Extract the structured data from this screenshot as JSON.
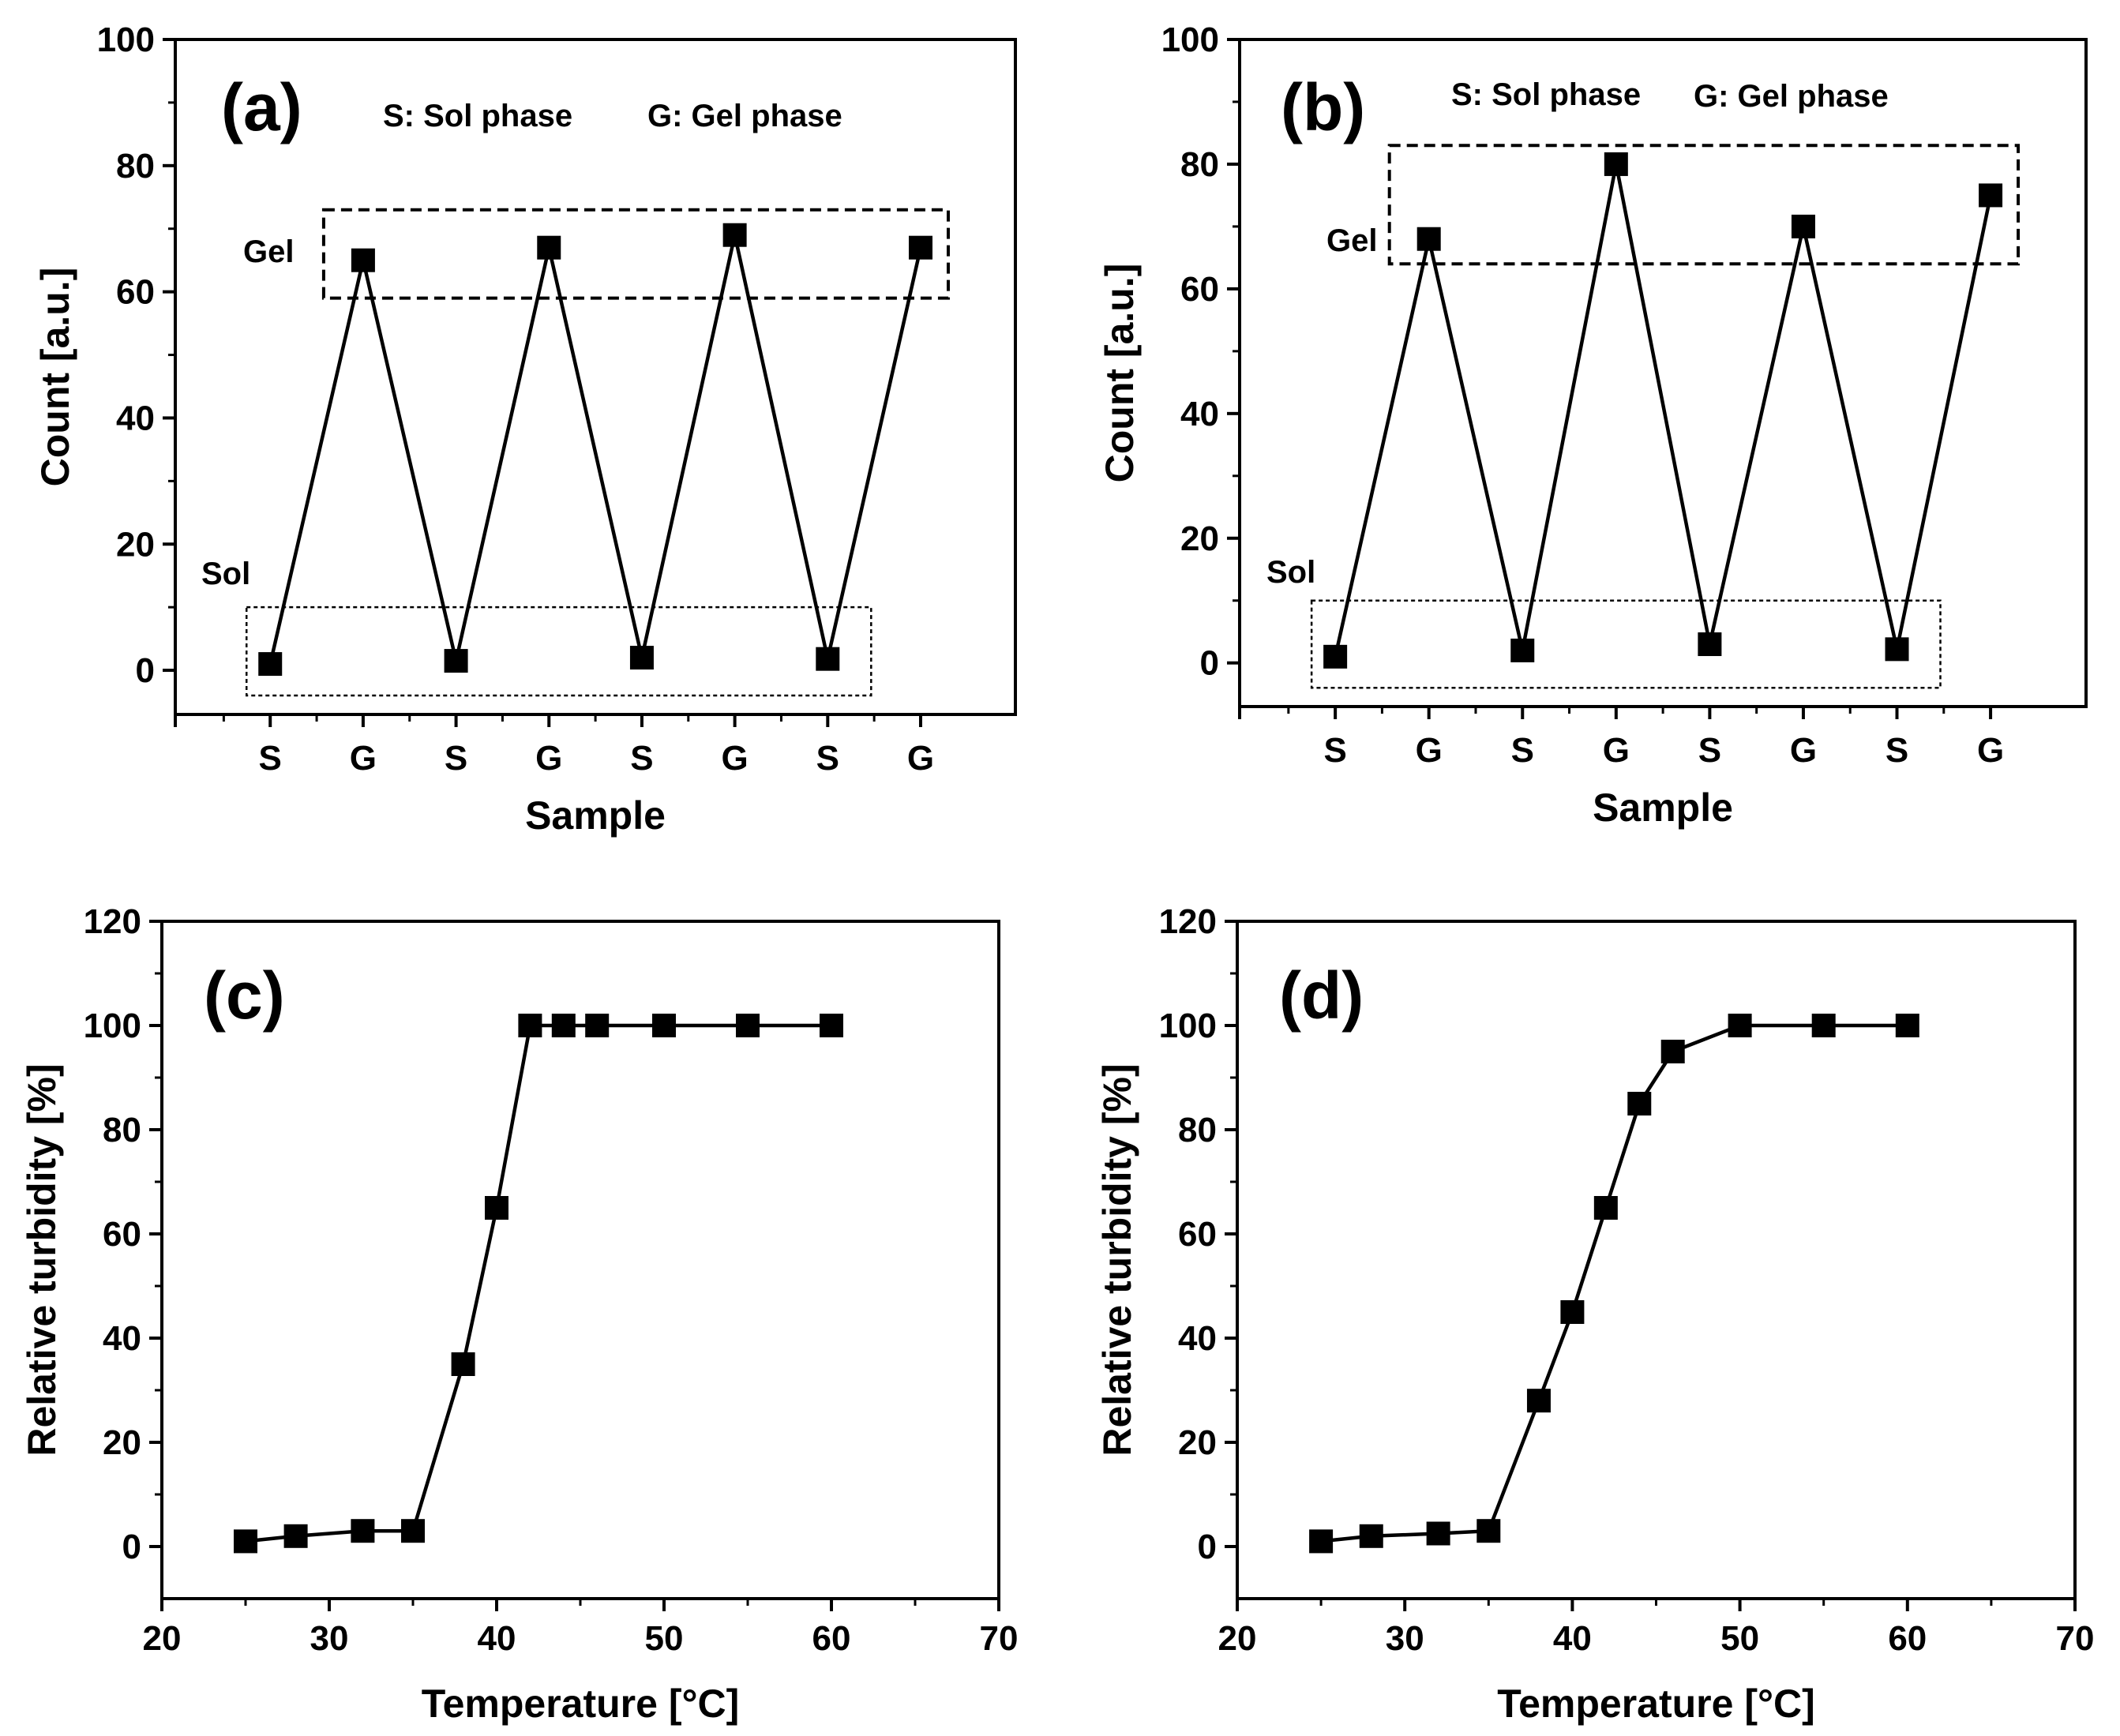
{
  "chart_data": [
    {
      "id": "a",
      "type": "line",
      "panel_label": "(a)",
      "xlabel": "Sample",
      "ylabel": "Count [a.u.]",
      "ylim": [
        -7,
        100
      ],
      "yticks": [
        0,
        20,
        40,
        60,
        80,
        100
      ],
      "categories": [
        "S",
        "G",
        "S",
        "G",
        "S",
        "G",
        "S",
        "G"
      ],
      "series": [
        {
          "values": [
            1,
            65,
            1.5,
            67,
            2,
            69,
            1.8,
            67
          ]
        }
      ],
      "annotations": [
        "S: Sol phase",
        "G: Gel phase"
      ],
      "regions": [
        {
          "label": "Gel",
          "y_range": [
            59,
            73
          ],
          "style": "dashed"
        },
        {
          "label": "Sol",
          "y_range": [
            -4,
            10
          ],
          "style": "dotted"
        }
      ]
    },
    {
      "id": "b",
      "type": "line",
      "panel_label": "(b)",
      "xlabel": "Sample",
      "ylabel": "Count [a.u.]",
      "ylim": [
        -7,
        100
      ],
      "yticks": [
        0,
        20,
        40,
        60,
        80,
        100
      ],
      "categories": [
        "S",
        "G",
        "S",
        "G",
        "S",
        "G",
        "S",
        "G"
      ],
      "series": [
        {
          "values": [
            1,
            68,
            2,
            80,
            3,
            70,
            2.2,
            75
          ]
        }
      ],
      "annotations": [
        "S: Sol phase",
        "G: Gel phase"
      ],
      "regions": [
        {
          "label": "Gel",
          "y_range": [
            64,
            83
          ],
          "style": "dashed"
        },
        {
          "label": "Sol",
          "y_range": [
            -4,
            10
          ],
          "style": "dotted"
        }
      ]
    },
    {
      "id": "c",
      "type": "line",
      "panel_label": "(c)",
      "xlabel": "Temperature [°C]",
      "ylabel": "Relative turbidity [%]",
      "xlim": [
        20,
        70
      ],
      "ylim": [
        -10,
        120
      ],
      "xticks": [
        20,
        30,
        40,
        50,
        60,
        70
      ],
      "yticks": [
        0,
        20,
        40,
        60,
        80,
        100,
        120
      ],
      "series": [
        {
          "x": [
            25,
            28,
            32,
            35,
            38,
            40,
            42,
            44,
            46,
            50,
            55,
            60
          ],
          "y": [
            1,
            2,
            3,
            3,
            35,
            65,
            100,
            100,
            100,
            100,
            100,
            100
          ]
        }
      ]
    },
    {
      "id": "d",
      "type": "line",
      "panel_label": "(d)",
      "xlabel": "Temperature [°C]",
      "ylabel": "Relative turbidity [%]",
      "xlim": [
        20,
        70
      ],
      "ylim": [
        -10,
        120
      ],
      "xticks": [
        20,
        30,
        40,
        50,
        60,
        70
      ],
      "yticks": [
        0,
        20,
        40,
        60,
        80,
        100,
        120
      ],
      "series": [
        {
          "x": [
            25,
            28,
            32,
            35,
            38,
            40,
            42,
            44,
            46,
            50,
            55,
            60
          ],
          "y": [
            1,
            2,
            2.5,
            3,
            28,
            45,
            65,
            85,
            95,
            100,
            100,
            100
          ]
        }
      ]
    }
  ]
}
